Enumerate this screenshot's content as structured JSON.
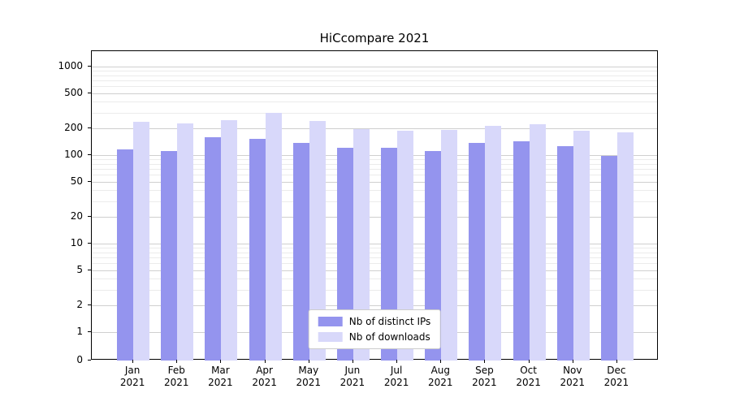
{
  "chart_data": {
    "type": "bar",
    "title": "HiCcompare 2021",
    "categories": [
      "Jan 2021",
      "Feb 2021",
      "Mar 2021",
      "Apr 2021",
      "May 2021",
      "Jun 2021",
      "Jul 2021",
      "Aug 2021",
      "Sep 2021",
      "Oct 2021",
      "Nov 2021",
      "Dec 2021"
    ],
    "series": [
      {
        "name": "Nb of distinct IPs",
        "color": "#9494ee",
        "values": [
          115,
          112,
          158,
          152,
          138,
          122,
          122,
          112,
          138,
          142,
          125,
          97
        ]
      },
      {
        "name": "Nb of downloads",
        "color": "#d8d8fa",
        "values": [
          240,
          228,
          250,
          300,
          245,
          197,
          188,
          192,
          212,
          222,
          190,
          180
        ]
      }
    ],
    "yscale": "symlog",
    "yticks": [
      0,
      1,
      2,
      5,
      10,
      20,
      50,
      100,
      200,
      500,
      1000
    ],
    "ylim": [
      0,
      1500
    ],
    "grid": "horizontal",
    "legend_position": "lower center"
  }
}
